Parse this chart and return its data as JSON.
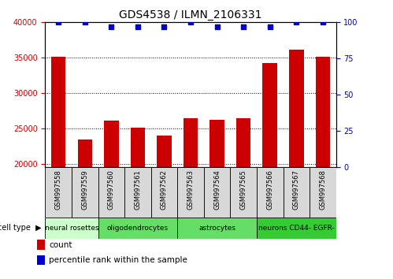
{
  "title": "GDS4538 / ILMN_2106331",
  "samples": [
    "GSM997558",
    "GSM997559",
    "GSM997560",
    "GSM997561",
    "GSM997562",
    "GSM997563",
    "GSM997564",
    "GSM997565",
    "GSM997566",
    "GSM997567",
    "GSM997568"
  ],
  "counts": [
    35100,
    23400,
    26100,
    25100,
    24000,
    26400,
    26200,
    26400,
    34200,
    36100,
    35100
  ],
  "percentile_ranks": [
    100,
    100,
    97,
    97,
    97,
    100,
    97,
    97,
    97,
    100,
    100
  ],
  "ylim_left": [
    19500,
    40000
  ],
  "ylim_right": [
    0,
    100
  ],
  "yticks_left": [
    20000,
    25000,
    30000,
    35000,
    40000
  ],
  "yticks_right": [
    0,
    25,
    50,
    75,
    100
  ],
  "bar_color": "#cc0000",
  "dot_color": "#0000cc",
  "grid_color": "#000000",
  "cell_types": [
    {
      "label": "neural rosettes",
      "start": 0,
      "end": 2,
      "color": "#ccffcc"
    },
    {
      "label": "oligodendrocytes",
      "start": 2,
      "end": 5,
      "color": "#66dd66"
    },
    {
      "label": "astrocytes",
      "start": 5,
      "end": 8,
      "color": "#66dd66"
    },
    {
      "label": "neurons CD44- EGFR-",
      "start": 8,
      "end": 11,
      "color": "#33cc33"
    }
  ],
  "cell_type_label": "cell type",
  "legend_count_label": "count",
  "legend_pct_label": "percentile rank within the sample",
  "bar_width": 0.55,
  "background_color": "#ffffff",
  "gray_box_color": "#d8d8d8",
  "sample_fontsize": 6.0,
  "cell_fontsize": 6.5,
  "tick_fontsize": 7.0,
  "title_fontsize": 10
}
